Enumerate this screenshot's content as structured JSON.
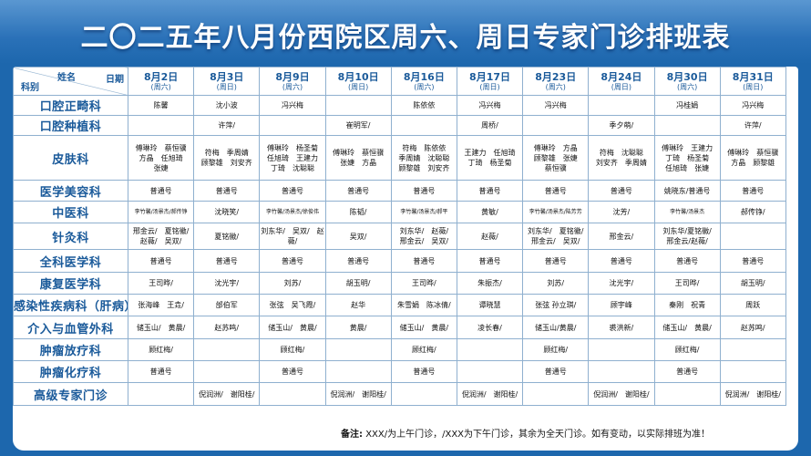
{
  "title": "二〇二五年八月份西院区周六、周日专家门诊排班表",
  "header": {
    "name_label": "姓名",
    "date_label": "日期",
    "dept_label": "科别"
  },
  "dates": [
    {
      "date": "8月2日",
      "weekday": "(周六)"
    },
    {
      "date": "8月3日",
      "weekday": "(周日)"
    },
    {
      "date": "8月9日",
      "weekday": "(周六)"
    },
    {
      "date": "8月10日",
      "weekday": "(周日)"
    },
    {
      "date": "8月16日",
      "weekday": "(周六)"
    },
    {
      "date": "8月17日",
      "weekday": "(周日)"
    },
    {
      "date": "8月23日",
      "weekday": "(周六)"
    },
    {
      "date": "8月24日",
      "weekday": "(周日)"
    },
    {
      "date": "8月30日",
      "weekday": "(周六)"
    },
    {
      "date": "8月31日",
      "weekday": "(周日)"
    }
  ],
  "rows": [
    {
      "dept": "口腔正畸科",
      "cells": [
        "陈馨",
        "沈小波",
        "冯兴梅",
        "",
        "陈依依",
        "冯兴梅",
        "冯兴梅",
        "",
        "冯桂娟",
        "冯兴梅"
      ]
    },
    {
      "dept": "口腔种植科",
      "cells": [
        "",
        "许萍/",
        "",
        "崔明军/",
        "",
        "周桥/",
        "",
        "季夕萌/",
        "",
        "许萍/"
      ]
    },
    {
      "dept": "皮肤科",
      "cells": [
        "傅琳玲　蔡恒骥\n方晶　任旭琦\n张婕",
        "符梅　季周婧\n顾黎雄　刘安齐",
        "傅琳玲　杨圣菊\n任旭琦　王建力\n丁琦　沈聪聪",
        "傅琳玲　蔡恒骥\n张婕　方晶",
        "符梅　陈依依\n季周婧　沈聪聪\n顾黎雄　刘安齐",
        "王建力　任旭琦\n丁琦　杨圣菊",
        "傅琳玲　方晶\n顾黎雄　张婕\n蔡恒骥",
        "符梅　沈聪聪\n刘安齐　季周婧",
        "傅琳玲　王建力\n丁琦　杨圣菊\n任旭琦　张婕",
        "傅琳玲　蔡恒骥\n方晶　顾黎雄"
      ]
    },
    {
      "dept": "医学美容科",
      "cells": [
        "普通号",
        "普通号",
        "普通号",
        "普通号",
        "普通号",
        "普通号",
        "普通号",
        "普通号",
        "姚晓东/普通号",
        "普通号"
      ]
    },
    {
      "dept": "中医科",
      "cells": [
        "李竹馨/汤景杰/郝传铮",
        "沈晓笑/",
        "李竹馨/汤景杰/徐俊伟",
        "陈韬/",
        "李竹馨/汤景杰/郝平",
        "黄敏/",
        "李竹馨/汤景杰/陆芳芳",
        "沈芳/",
        "李竹馨/汤景杰",
        "郝传铮/"
      ]
    },
    {
      "dept": "针灸科",
      "cells": [
        "邢金云/　夏铭徽/\n赵薇/　吴双/",
        "夏铭徽/",
        "刘东华/　吴双/　赵薇/",
        "吴双/",
        "刘东华/　赵薇/\n邢金云/　吴双/",
        "赵薇/",
        "刘东华/　夏铭徽/\n邢金云/　吴双/",
        "邢金云/",
        "刘东华/夏铭徽/\n邢金云/赵薇/",
        ""
      ]
    },
    {
      "dept": "全科医学科",
      "cells": [
        "普通号",
        "普通号",
        "普通号",
        "普通号",
        "普通号",
        "普通号",
        "普通号",
        "普通号",
        "普通号",
        "普通号"
      ]
    },
    {
      "dept": "康复医学科",
      "cells": [
        "王司晔/",
        "沈光宇/",
        "刘苏/",
        "胡玉明/",
        "王司晔/",
        "朱振杰/",
        "刘苏/",
        "沈光宇/",
        "王司晔/",
        "胡玉明/"
      ]
    },
    {
      "dept": "感染性疾病科（肝病）",
      "cells": [
        "张海峰　王垚/",
        "邰伯军",
        "张弦　吴飞霞/",
        "赵华",
        "朱雪娟　陈冰倩/",
        "谭晓慧",
        "张弦 孙立琪/",
        "顾宇峰",
        "秦刚　祝青",
        "周跃"
      ]
    },
    {
      "dept": "介入与血管外科",
      "cells": [
        "储玉山/　黄晨/",
        "赵苏鸣/",
        "储玉山/　黄晨/",
        "黄晨/",
        "储玉山/　黄晨/",
        "凌长春/",
        "储玉山/黄晨/",
        "裘洪新/",
        "储玉山/　黄晨/",
        "赵苏鸣/"
      ]
    },
    {
      "dept": "肿瘤放疗科",
      "cells": [
        "顾红梅/",
        "",
        "顾红梅/",
        "",
        "顾红梅/",
        "",
        "顾红梅/",
        "",
        "顾红梅/",
        ""
      ]
    },
    {
      "dept": "肿瘤化疗科",
      "cells": [
        "普通号",
        "",
        "普通号",
        "",
        "普通号",
        "",
        "普通号",
        "",
        "普通号",
        ""
      ]
    },
    {
      "dept": "高级专家门诊",
      "cells": [
        "",
        "倪润洲/　谢阳桂/",
        "",
        "倪润洲/　谢阳桂/",
        "",
        "倪润洲/　谢阳桂/",
        "",
        "倪润洲/　谢阳桂/",
        "",
        "倪润洲/　谢阳桂/"
      ]
    }
  ],
  "note_label": "备注:",
  "note_text": "XXX/为上午门诊，/XXX为下午门诊，其余为全天门诊。如有变动，以实际排班为准！"
}
